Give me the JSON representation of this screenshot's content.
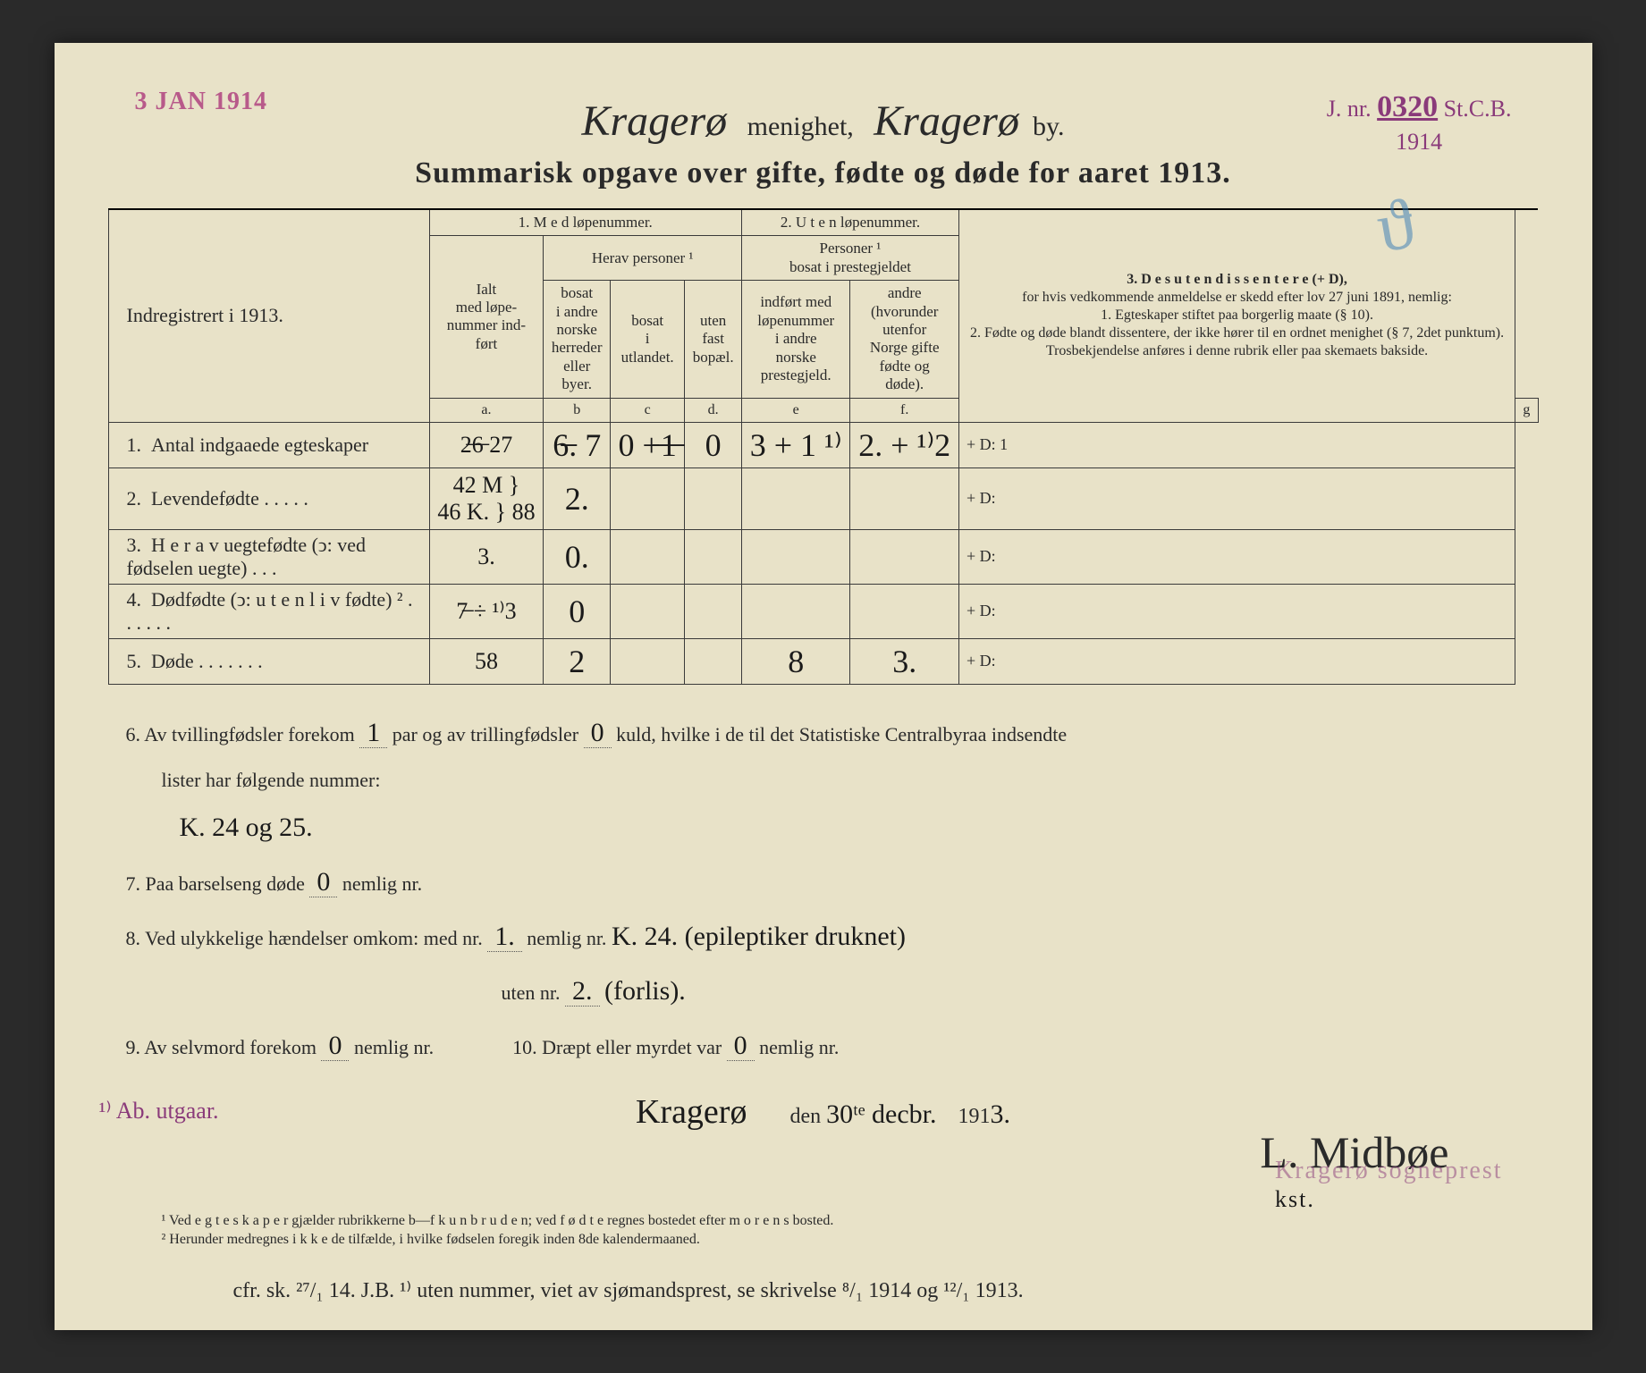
{
  "stamps": {
    "received_date": "3 JAN 1914",
    "jnr_prefix": "J. nr.",
    "jnr_number": "0320",
    "jnr_suffix": "St.C.B.",
    "jnr_year": "1914",
    "sogneprest": "Kragerø sogneprest",
    "blue_mark": "ϑ"
  },
  "header": {
    "parish_hand": "Kragerø",
    "parish_label": "menighet,",
    "town_hand": "Kragerø",
    "town_label": "by.",
    "title": "Summarisk opgave over gifte, fødte og døde for aaret 1913."
  },
  "columns": {
    "indreg": "Indregistrert i 1913.",
    "sec1": "1.  M e d  løpenummer.",
    "sec2": "2. U t e n løpenummer.",
    "sec3_title": "3.  D e s u t e n  d i s s e n t e r e (+ D),",
    "sec3_body": "for hvis vedkommende anmeldelse er skedd efter lov 27 juni 1891, nemlig:\n1. Egteskaper stiftet paa borgerlig maate (§ 10).\n2. Fødte og døde blandt dissentere, der ikke hører til en ordnet menighet (§ 7, 2det punktum).\nTrosbekjendelse anføres i denne rubrik eller paa skemaets bakside.",
    "ialt": "Ialt\nmed løpe-\nnummer ind-\nført",
    "herav": "Herav personer ¹",
    "b": "bosat\ni andre\nnorske\nherreder\neller\nbyer.",
    "c": "bosat\ni\nutlandet.",
    "d": "uten\nfast\nbopæl.",
    "personer2": "Personer ¹\nbosat i prestegjeldet",
    "e": "indført med\nløpenummer\ni andre\nnorske\nprestegjeld.",
    "f": "andre\n(hvorunder\nutenfor\nNorge gifte\nfødte og\ndøde).",
    "la": "a.",
    "lb": "b",
    "lc": "c",
    "ld": "d.",
    "le": "e",
    "lf": "f.",
    "lg": "g"
  },
  "rows": [
    {
      "n": "1.",
      "label": "Antal indgaaede egteskaper",
      "a": "2̶6̶ 27",
      "b": "6̶. 7",
      "c": "0 +̶1̶",
      "d": "0",
      "e": "3 + 1 ¹⁾",
      "f": "2. + ¹⁾2",
      "g": "+ D: 1"
    },
    {
      "n": "2.",
      "label": "Levendefødte . . . . .",
      "a": "42 M }\n46 K. } 88",
      "b": "2.",
      "c": "",
      "d": "",
      "e": "",
      "f": "",
      "g": "+ D:"
    },
    {
      "n": "3.",
      "label": "H e r a v uegtefødte (ↄ: ved fødselen uegte) . . .",
      "a": "3.",
      "b": "0.",
      "c": "",
      "d": "",
      "e": "",
      "f": "",
      "g": "+ D:"
    },
    {
      "n": "4.",
      "label": "Dødfødte (ↄ: u t e n  l i v fødte) ² . . . . . .",
      "a": "7̶ ÷ ¹⁾3",
      "b": "0",
      "c": "",
      "d": "",
      "e": "",
      "f": "",
      "g": "+ D:"
    },
    {
      "n": "5.",
      "label": "Døde . . . . . . .",
      "a": "58",
      "b": "2",
      "c": "",
      "d": "",
      "e": "8",
      "f": "3.",
      "g": "+ D:"
    }
  ],
  "notes": {
    "l6a": "6.   Av tvillingfødsler forekom",
    "l6_twin": "1",
    "l6b": "par og av trillingfødsler",
    "l6_trip": "0",
    "l6c": "kuld, hvilke i de til det Statistiske Centralbyraa indsendte",
    "l6d": "lister har følgende nummer:",
    "l6_hand": "K. 24 og 25.",
    "l7a": "7.   Paa barselseng døde",
    "l7_v": "0",
    "l7b": "nemlig nr.",
    "l8a": "8.   Ved ulykkelige hændelser omkom: med nr.",
    "l8_v1": "1.",
    "l8b": "nemlig nr.",
    "l8_hand1": "K. 24. (epileptiker druknet)",
    "l8c": "uten nr.",
    "l8_v2": "2.",
    "l8_hand2": "(forlis).",
    "l9a": "9.   Av selvmord forekom",
    "l9_v": "0",
    "l9b": "nemlig nr.",
    "l10a": "10.   Dræpt eller myrdet var",
    "l10_v": "0",
    "l10b": "nemlig nr."
  },
  "sig": {
    "place": "Kragerø",
    "den": "den",
    "date": "30ᵗᵉ decbr.",
    "year_prefix": "191",
    "year_hand": "3.",
    "name": "L. Midbøe",
    "kst": "kst."
  },
  "marginal": "¹⁾ Ab. utgaar.",
  "footnotes": {
    "f1": "¹ Ved e g t e s k a p e r gjælder rubrikkerne b—f  k u n  b r u d e n; ved f ø d t e regnes bostedet efter m o r e n s bosted.",
    "f2": "² Herunder medregnes i k k e de tilfælde, i hvilke fødselen foregik inden 8de kalendermaaned."
  },
  "bottom_hand": "cfr. sk. ²⁷/₁ 14. J.B.    ¹⁾ uten nummer, viet av sjømandsprest, se skrivelse ⁸/₁ 1914 og ¹²/₁ 1913."
}
